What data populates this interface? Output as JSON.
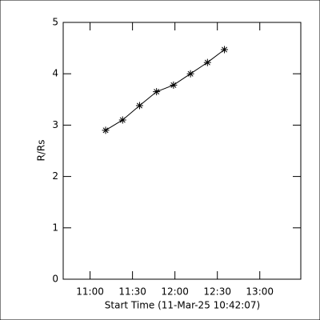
{
  "chart_data": {
    "type": "line",
    "x_label": "Start Time (11-Mar-25 10:42:07)",
    "y_label": "R/Rs",
    "x": [
      671,
      683,
      695,
      707,
      719,
      731,
      743,
      755
    ],
    "series": [
      {
        "color": "#000000",
        "marker": "asterisk",
        "values": [
          2.9,
          3.1,
          3.38,
          3.65,
          3.78,
          4.0,
          4.22,
          4.47
        ]
      }
    ],
    "xlim": [
      641,
      809
    ],
    "xticks": [
      {
        "value": 660,
        "label": "11:00"
      },
      {
        "value": 690,
        "label": "11:30"
      },
      {
        "value": 720,
        "label": "12:00"
      },
      {
        "value": 750,
        "label": "12:30"
      },
      {
        "value": 780,
        "label": "13:00"
      }
    ],
    "ylim": [
      0,
      5
    ],
    "yticks": [
      0,
      1,
      2,
      3,
      4,
      5
    ],
    "grid": false
  }
}
